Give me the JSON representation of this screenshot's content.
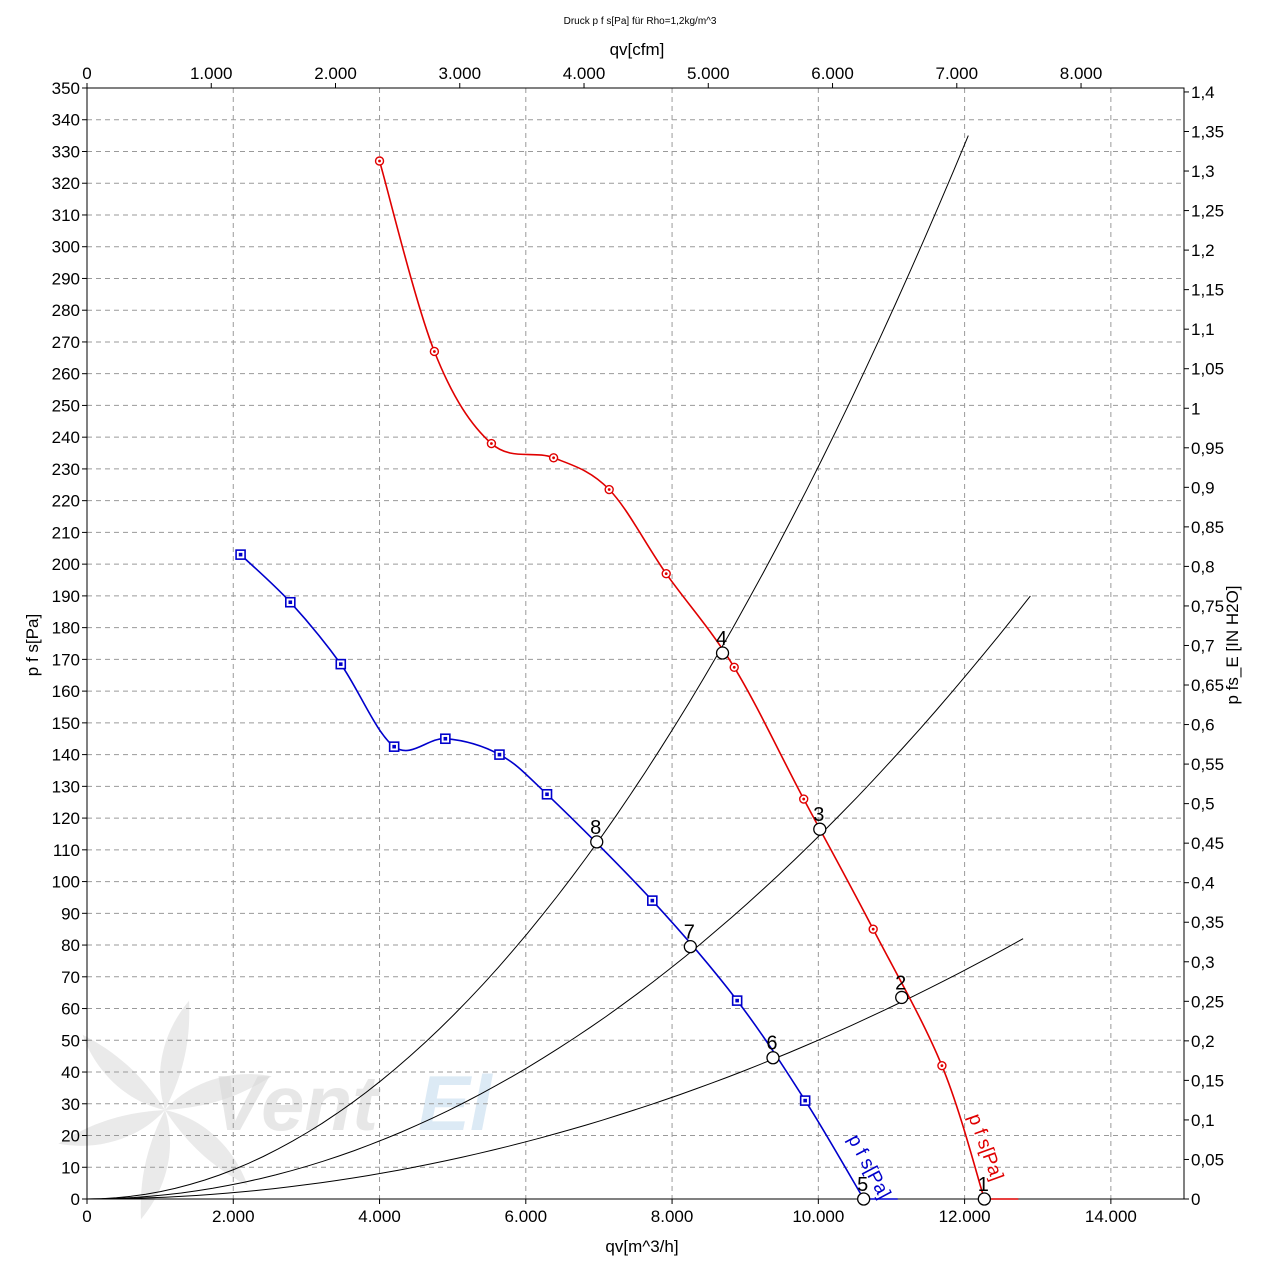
{
  "chart_data": {
    "type": "line",
    "title": "Druck p f s[Pa] für Rho=1,2kg/m^3",
    "xlabel": "qv[m^3/h]",
    "x2label": "qv[cfm]",
    "ylabel": "p f s[Pa]",
    "y2label": "p fs_E [IN H2O]",
    "xlim": [
      0,
      15000
    ],
    "ylim": [
      0,
      350
    ],
    "x2lim": [
      0,
      8828.6
    ],
    "y2lim": [
      0,
      1.405
    ],
    "grid": true,
    "x_ticks": [
      0,
      2000,
      4000,
      6000,
      8000,
      10000,
      12000,
      14000
    ],
    "x_tick_labels": [
      "0",
      "2.000",
      "4.000",
      "6.000",
      "8.000",
      "10.000",
      "12.000",
      "14.000"
    ],
    "x2_ticks": [
      0,
      1000,
      2000,
      3000,
      4000,
      5000,
      6000,
      7000,
      8000
    ],
    "x2_tick_labels": [
      "0",
      "1.000",
      "2.000",
      "3.000",
      "4.000",
      "5.000",
      "6.000",
      "7.000",
      "8.000"
    ],
    "y_ticks": [
      0,
      10,
      20,
      30,
      40,
      50,
      60,
      70,
      80,
      90,
      100,
      110,
      120,
      130,
      140,
      150,
      160,
      170,
      180,
      190,
      200,
      210,
      220,
      230,
      240,
      250,
      260,
      270,
      280,
      290,
      300,
      310,
      320,
      330,
      340,
      350
    ],
    "y2_ticks": [
      0,
      0.05,
      0.1,
      0.15,
      0.2,
      0.25,
      0.3,
      0.35,
      0.4,
      0.45,
      0.5,
      0.55,
      0.6,
      0.65,
      0.7,
      0.75,
      0.8,
      0.85,
      0.9,
      0.95,
      1,
      1.05,
      1.1,
      1.15,
      1.2,
      1.25,
      1.3,
      1.35,
      1.4
    ],
    "y2_tick_labels": [
      "0",
      "0,05",
      "0,1",
      "0,15",
      "0,2",
      "0,25",
      "0,3",
      "0,35",
      "0,4",
      "0,45",
      "0,5",
      "0,55",
      "0,6",
      "0,65",
      "0,7",
      "0,75",
      "0,8",
      "0,85",
      "0,9",
      "0,95",
      "1",
      "1,05",
      "1,1",
      "1,15",
      "1,2",
      "1,25",
      "1,3",
      "1,35",
      "1,4"
    ],
    "series": [
      {
        "name": "p f s[Pa]",
        "color": "#e00000",
        "marker": "circle",
        "x": [
          4000,
          4750,
          5530,
          6380,
          7140,
          7920,
          8850,
          9800,
          10750,
          11690,
          12270
        ],
        "y": [
          327,
          267,
          238,
          233.5,
          223.5,
          197,
          167.5,
          126,
          85,
          42,
          0
        ]
      },
      {
        "name": "p f s[Pa]",
        "color": "#0000cc",
        "marker": "square",
        "x": [
          2100,
          2780,
          3470,
          4200,
          4900,
          5640,
          6290,
          7730,
          8890,
          9820,
          10620
        ],
        "y": [
          203,
          188,
          168.5,
          142.5,
          145,
          140,
          127.5,
          94,
          62.5,
          31,
          0
        ]
      }
    ],
    "system_curves": [
      {
        "name": "system-curve-1",
        "x_end": 12800,
        "y_end": 82
      },
      {
        "name": "system-curve-2",
        "x_end": 12900,
        "y_end": 190
      },
      {
        "name": "system-curve-3",
        "x_end": 12050,
        "y_end": 335
      }
    ],
    "operating_points": [
      {
        "label": "1",
        "x": 12270,
        "y": 0
      },
      {
        "label": "2",
        "x": 11140,
        "y": 63.5
      },
      {
        "label": "3",
        "x": 10020,
        "y": 116.5
      },
      {
        "label": "4",
        "x": 8690,
        "y": 172
      },
      {
        "label": "5",
        "x": 10620,
        "y": 0
      },
      {
        "label": "6",
        "x": 9380,
        "y": 44.5
      },
      {
        "label": "7",
        "x": 8250,
        "y": 79.5
      },
      {
        "label": "8",
        "x": 6970,
        "y": 112.5
      }
    ],
    "series_labels": [
      {
        "text": "p f s[Pa]",
        "color": "#e00000",
        "x": 12050,
        "y": 26,
        "rotate": 70
      },
      {
        "text": "p f s[Pa]",
        "color": "#0000cc",
        "x": 10400,
        "y": 19,
        "rotate": 62
      }
    ]
  },
  "watermark": {
    "text": "VentEl",
    "color_dark": "#d8d8d8",
    "color_light": "#d9e8f4"
  }
}
